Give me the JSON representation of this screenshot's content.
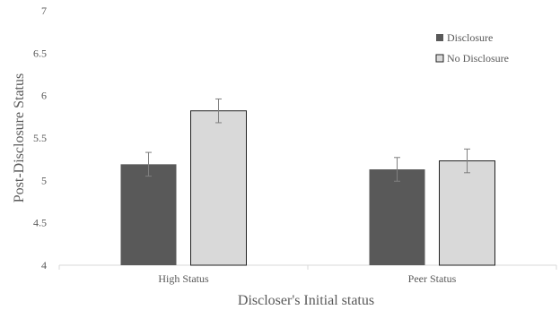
{
  "chart_data": {
    "type": "bar",
    "title": "",
    "xlabel": "Discloser's Initial status",
    "ylabel": "Post-Disclosure Status",
    "categories": [
      "High Status",
      "Peer Status"
    ],
    "series": [
      {
        "name": "Disclosure",
        "values": [
          5.19,
          5.13
        ],
        "error": [
          0.14,
          0.14
        ],
        "color": "#595959"
      },
      {
        "name": "No Disclosure",
        "values": [
          5.82,
          5.23
        ],
        "error": [
          0.14,
          0.14
        ],
        "color": "#d9d9d9"
      }
    ],
    "ylim": [
      4,
      7
    ],
    "yticks": [
      "4",
      "4.5",
      "5",
      "5.5",
      "6",
      "6.5",
      "7"
    ],
    "grid": false,
    "legend_position": "top-right",
    "error_bar_color": "#7f7f7f",
    "bar_outline_color": "#222222"
  }
}
